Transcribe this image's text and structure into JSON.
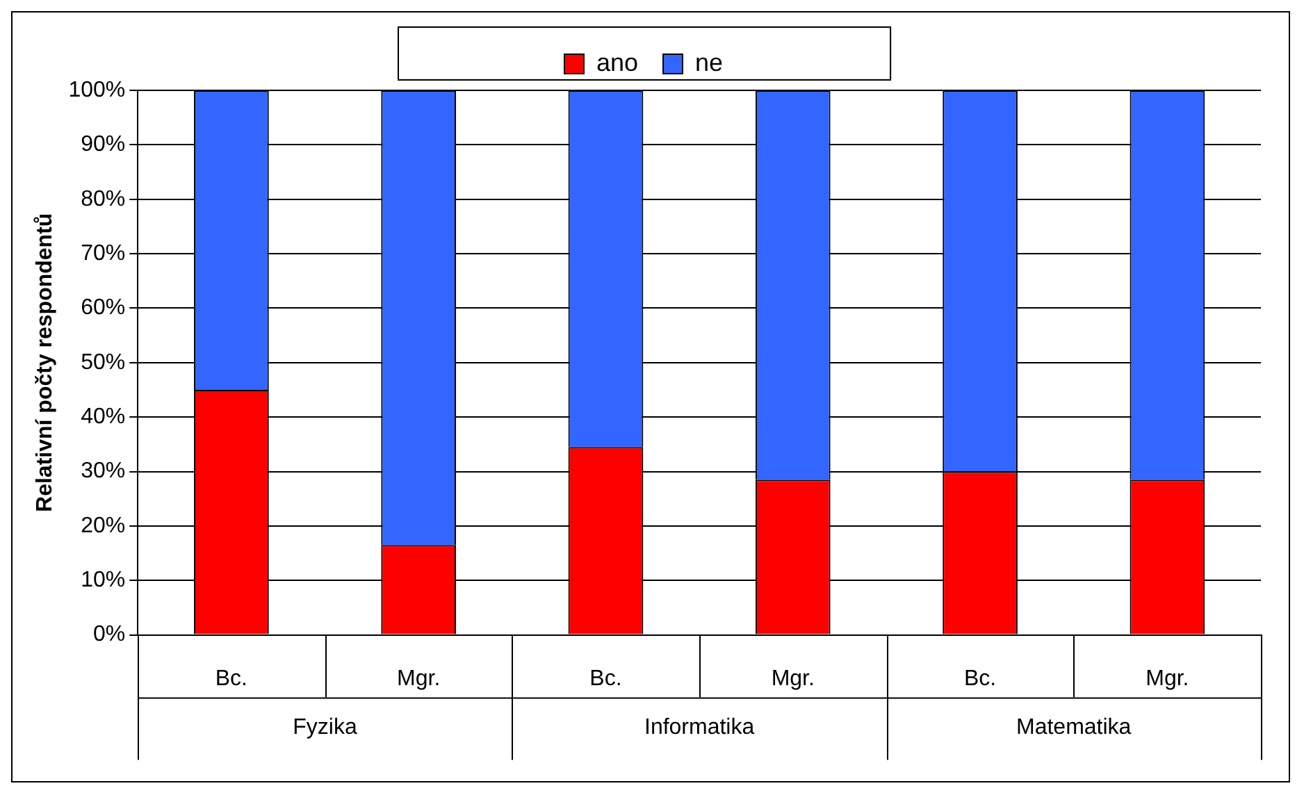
{
  "chart_data": {
    "type": "bar",
    "stacked": true,
    "ylabel": "Relativní počty respondentů",
    "categories": [
      "Bc.",
      "Mgr.",
      "Bc.",
      "Mgr.",
      "Bc.",
      "Mgr."
    ],
    "series": [
      {
        "name": "ano",
        "color": "#ff0000",
        "values": [
          45,
          16.5,
          34.5,
          28.5,
          30,
          28.5
        ]
      },
      {
        "name": "ne",
        "color": "#3366ff",
        "values": [
          55,
          83.5,
          65.5,
          71.5,
          70,
          71.5
        ]
      }
    ],
    "ylim": [
      0,
      100
    ],
    "yticks": [
      {
        "value": 0,
        "label": "0%"
      },
      {
        "value": 10,
        "label": "10%"
      },
      {
        "value": 20,
        "label": "20%"
      },
      {
        "value": 30,
        "label": "30%"
      },
      {
        "value": 40,
        "label": "40%"
      },
      {
        "value": 50,
        "label": "50%"
      },
      {
        "value": 60,
        "label": "60%"
      },
      {
        "value": 70,
        "label": "70%"
      },
      {
        "value": 80,
        "label": "80%"
      },
      {
        "value": 90,
        "label": "90%"
      },
      {
        "value": 100,
        "label": "100%"
      }
    ],
    "grid": "y",
    "legend": "top",
    "annotations": [
      "Fyzika",
      "Informatika",
      "Matematika"
    ]
  }
}
